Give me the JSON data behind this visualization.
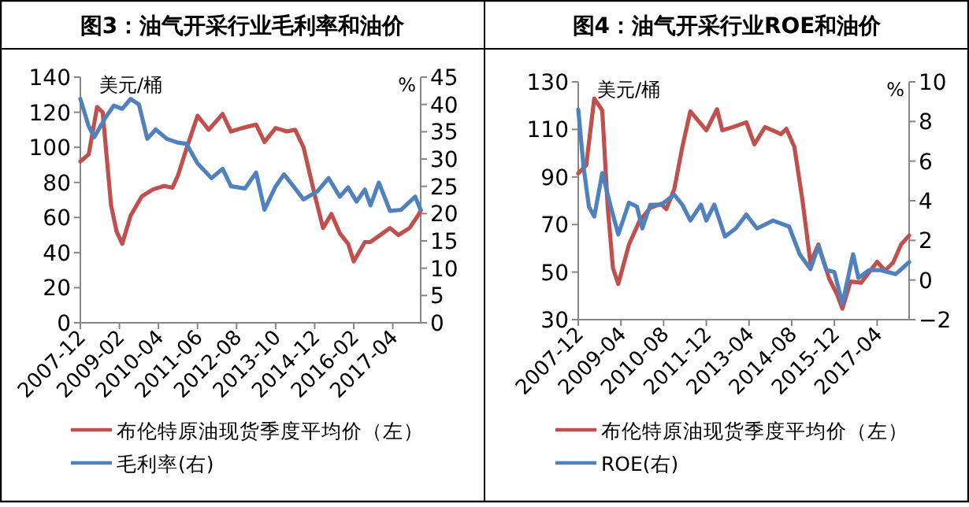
{
  "chart_data": [
    {
      "type": "line",
      "title": "图3：油气开采行业毛利率和油价",
      "ylabel": "美元/桶",
      "y2label": "%",
      "legend": "bottom",
      "xlim": [
        "2007-12",
        "2018-02"
      ],
      "xticks": [
        "2007-12",
        "2009-02",
        "2010-04",
        "2011-06",
        "2012-08",
        "2013-10",
        "2014-12",
        "2016-02",
        "2017-04"
      ],
      "ylim": [
        0,
        140
      ],
      "yticks": [
        0,
        20,
        40,
        60,
        80,
        100,
        120,
        140
      ],
      "y2lim": [
        0,
        45
      ],
      "y2ticks": [
        0,
        5,
        10,
        15,
        20,
        25,
        30,
        35,
        40,
        45
      ],
      "series": [
        {
          "name": "布伦特原油现货季度平均价（左）",
          "color": "#c0504d",
          "x": [
            "2007-12",
            "2008-03",
            "2008-06",
            "2008-08",
            "2008-11",
            "2009-01",
            "2009-03",
            "2009-06",
            "2009-10",
            "2010-02",
            "2010-06",
            "2010-09",
            "2010-11",
            "2011-02",
            "2011-06",
            "2011-10",
            "2012-03",
            "2012-06",
            "2012-10",
            "2013-03",
            "2013-06",
            "2013-10",
            "2014-02",
            "2014-05",
            "2014-08",
            "2014-12",
            "2015-03",
            "2015-06",
            "2015-09",
            "2015-12",
            "2016-02",
            "2016-06",
            "2016-08",
            "2017-03",
            "2017-06",
            "2017-10",
            "2018-01",
            "2018-02"
          ],
          "values": [
            92,
            96,
            123,
            120,
            67,
            52,
            45,
            61,
            72,
            76,
            78,
            77,
            84,
            99,
            118,
            110,
            119,
            109,
            111,
            113,
            103,
            111,
            109,
            110,
            100,
            73,
            54,
            62,
            51,
            45,
            35,
            46,
            46,
            54,
            50,
            54,
            61,
            64
          ]
        },
        {
          "name": "毛利率(右)",
          "color": "#4f81bd",
          "axis": "y2",
          "x": [
            "2007-12",
            "2008-03",
            "2008-05",
            "2008-09",
            "2008-12",
            "2009-03",
            "2009-06",
            "2009-09",
            "2009-12",
            "2010-03",
            "2010-07",
            "2010-11",
            "2011-02",
            "2011-06",
            "2011-11",
            "2012-03",
            "2012-06",
            "2012-11",
            "2013-03",
            "2013-06",
            "2013-10",
            "2014-01",
            "2014-05",
            "2014-08",
            "2015-01",
            "2015-05",
            "2015-09",
            "2015-12",
            "2016-03",
            "2016-06",
            "2016-08",
            "2016-11",
            "2017-03",
            "2017-07",
            "2017-12",
            "2018-02"
          ],
          "values": [
            41,
            36,
            34,
            37.6,
            39.8,
            39.2,
            41,
            40,
            33.7,
            35.4,
            33.7,
            33,
            32.8,
            29.2,
            26.5,
            28.2,
            25,
            24.6,
            27.5,
            20.7,
            25,
            27.2,
            24.6,
            22.6,
            24.1,
            26.5,
            23.1,
            24.8,
            22.2,
            24.4,
            21.5,
            25.7,
            20.5,
            20.7,
            23.1,
            20.7
          ]
        }
      ]
    },
    {
      "type": "line",
      "title": "图4：油气开采行业ROE和油价",
      "ylabel": "美元/桶",
      "y2label": "%",
      "legend": "bottom",
      "xlim": [
        "2007-12",
        "2018-04"
      ],
      "xticks": [
        "2007-12",
        "2009-04",
        "2010-08",
        "2011-12",
        "2013-04",
        "2014-08",
        "2015-12",
        "2017-04"
      ],
      "ylim": [
        30,
        130
      ],
      "yticks": [
        30,
        50,
        70,
        90,
        110,
        130
      ],
      "y2lim": [
        -2,
        10
      ],
      "y2ticks": [
        {
          "value": -2,
          "label": "−2"
        },
        0,
        2,
        4,
        6,
        8,
        10
      ],
      "series": [
        {
          "name": "布伦特原油现货季度平均价（左）",
          "color": "#c0504d",
          "x": [
            "2007-12",
            "2008-03",
            "2008-06",
            "2008-09",
            "2008-11",
            "2009-01",
            "2009-03",
            "2009-07",
            "2009-11",
            "2010-03",
            "2010-07",
            "2010-09",
            "2010-12",
            "2011-03",
            "2011-06",
            "2011-12",
            "2012-04",
            "2012-06",
            "2012-10",
            "2013-03",
            "2013-06",
            "2013-10",
            "2014-04",
            "2014-06",
            "2014-09",
            "2014-12",
            "2015-03",
            "2015-06",
            "2015-10",
            "2016-01",
            "2016-03",
            "2016-06",
            "2016-10",
            "2017-04",
            "2017-07",
            "2017-10",
            "2018-01",
            "2018-04"
          ],
          "values": [
            91.5,
            95,
            123,
            118,
            78,
            51.7,
            45,
            61.6,
            71.6,
            77,
            78.7,
            76.5,
            85,
            102.6,
            117.6,
            109.6,
            118.5,
            109.6,
            111,
            113,
            103.7,
            111,
            108,
            110.3,
            102.6,
            80.4,
            54,
            61.6,
            47.3,
            40.6,
            34.6,
            46,
            45.5,
            54.3,
            50.6,
            54,
            61.6,
            65.4
          ]
        },
        {
          "name": "ROE(右)",
          "color": "#4f81bd",
          "axis": "y2",
          "x": [
            "2007-12",
            "2008-02",
            "2008-04",
            "2008-06",
            "2008-09",
            "2008-12",
            "2009-03",
            "2009-07",
            "2009-10",
            "2009-12",
            "2010-03",
            "2010-07",
            "2010-12",
            "2011-03",
            "2011-06",
            "2011-10",
            "2011-12",
            "2012-03",
            "2012-07",
            "2012-11",
            "2013-03",
            "2013-07",
            "2014-01",
            "2014-07",
            "2014-11",
            "2015-03",
            "2015-06",
            "2015-09",
            "2015-12",
            "2016-03",
            "2016-07",
            "2016-09",
            "2017-01",
            "2017-05",
            "2017-11",
            "2018-04"
          ],
          "values": [
            8.6,
            5.7,
            3.7,
            3.2,
            5.4,
            3.8,
            2.3,
            3.9,
            3.7,
            2.6,
            3.8,
            3.8,
            4.3,
            3.8,
            3.0,
            3.8,
            3.0,
            3.8,
            2.2,
            2.6,
            3.3,
            2.6,
            3.0,
            2.7,
            1.3,
            0.55,
            1.7,
            0.5,
            0.4,
            -1.2,
            1.3,
            0.1,
            0.5,
            0.5,
            0.3,
            0.9
          ]
        }
      ]
    }
  ]
}
